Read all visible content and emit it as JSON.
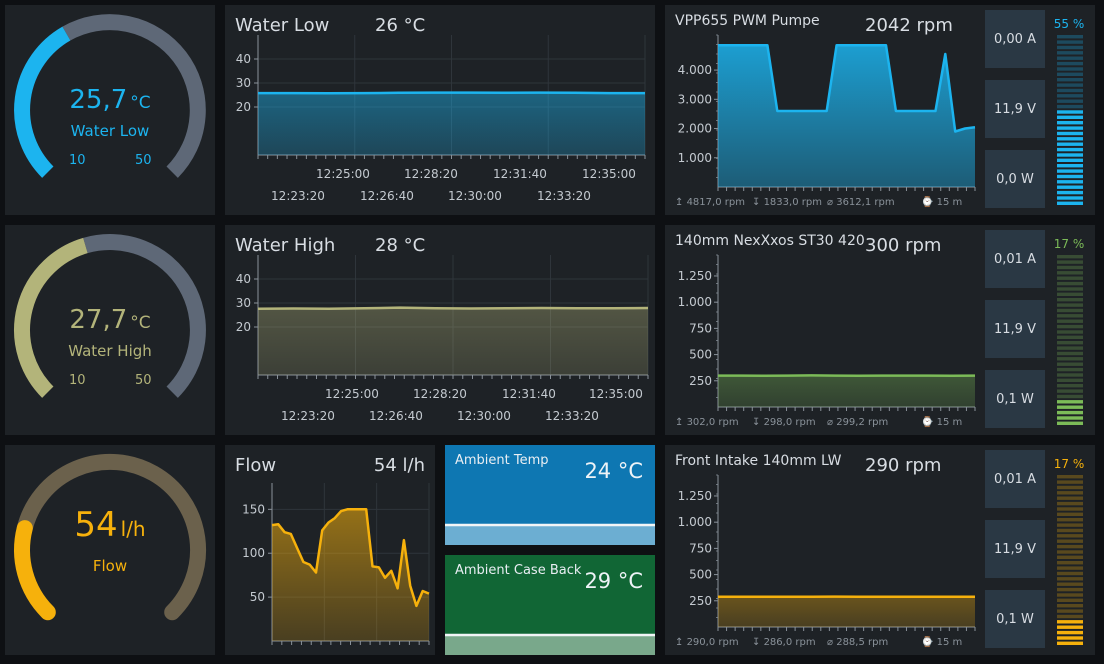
{
  "gauges": [
    {
      "value": "25,7",
      "unit": "°C",
      "label": "Water Low",
      "min": "10",
      "max": "50",
      "color": "#1cb4ef",
      "fraction": 0.39
    },
    {
      "value": "27,7",
      "unit": "°C",
      "label": "Water High",
      "min": "10",
      "max": "50",
      "color": "#b3b47a",
      "fraction": 0.44
    },
    {
      "value": "54",
      "unit": "l/h",
      "label": "Flow",
      "color": "#f6b10c",
      "fraction": 0.22
    }
  ],
  "charts": {
    "water_low": {
      "title": "Water Low",
      "value": "26 °C",
      "chart_data": {
        "type": "line",
        "ylim": [
          0,
          50
        ],
        "y_ticks": [
          "40",
          "30",
          "20"
        ],
        "x_ticks_top": [
          "12:25:00",
          "12:28:20",
          "12:31:40",
          "12:35:00"
        ],
        "x_ticks_bottom": [
          "12:23:20",
          "12:26:40",
          "12:30:00",
          "12:33:20"
        ],
        "series": [
          {
            "values": [
              25.8,
              25.8,
              25.7,
              25.8,
              25.9,
              26.0,
              26.0,
              25.9,
              26.0,
              25.9,
              25.8,
              25.8
            ]
          }
        ],
        "color": "#1cb4ef"
      }
    },
    "water_high": {
      "title": "Water High",
      "value": "28 °C",
      "chart_data": {
        "type": "line",
        "ylim": [
          0,
          50
        ],
        "y_ticks": [
          "40",
          "30",
          "20"
        ],
        "x_ticks_top": [
          "12:25:00",
          "12:28:20",
          "12:31:40",
          "12:35:00"
        ],
        "x_ticks_bottom": [
          "12:23:20",
          "12:26:40",
          "12:30:00",
          "12:33:20"
        ],
        "series": [
          {
            "values": [
              27.6,
              27.7,
              27.6,
              27.8,
              28.1,
              27.8,
              27.7,
              27.8,
              27.9,
              27.8,
              27.8,
              27.9
            ]
          }
        ],
        "color": "#b3b47a"
      }
    },
    "flow": {
      "title": "Flow",
      "value": "54 l/h",
      "chart_data": {
        "type": "line",
        "ylim": [
          0,
          180
        ],
        "y_ticks": [
          "150",
          "100",
          "50"
        ],
        "series": [
          {
            "values": [
              132,
              133,
              124,
              122,
              106,
              90,
              87,
              78,
              126,
              135,
              140,
              148,
              150,
              150,
              150,
              150,
              85,
              84,
              72,
              80,
              60,
              115,
              63,
              40,
              57,
              54
            ]
          }
        ],
        "color": "#f6b10c"
      }
    }
  },
  "fans": [
    {
      "title": "VPP655 PWM Pumpe",
      "rpm": "2042 rpm",
      "current": "0,00 A",
      "voltage": "11,9 V",
      "power": "0,0 W",
      "percent": "55 %",
      "level": 0.55,
      "color": "#1cb4ef",
      "footer": {
        "max": "4817,0 rpm",
        "min": "1833,0 rpm",
        "avg": "3612,1 rpm",
        "range": "15 m"
      },
      "chart_data": {
        "type": "area",
        "ylim": [
          0,
          5200
        ],
        "y_ticks": [
          "4.000",
          "3.000",
          "2.000",
          "1.000"
        ],
        "series": [
          {
            "values": [
              4850,
              4850,
              4850,
              4850,
              4850,
              4850,
              2600,
              2600,
              2600,
              2600,
              2600,
              2600,
              4850,
              4850,
              4850,
              4850,
              4850,
              4850,
              2600,
              2600,
              2600,
              2600,
              2600,
              4550,
              1900,
              2000,
              2042
            ]
          }
        ]
      }
    },
    {
      "title": "140mm NexXxos ST30 420",
      "rpm": "300 rpm",
      "current": "0,01 A",
      "voltage": "11,9 V",
      "power": "0,1 W",
      "percent": "17 %",
      "level": 0.17,
      "color": "#7cbb58",
      "footer": {
        "max": "302,0 rpm",
        "min": "298,0 rpm",
        "avg": "299,2 rpm",
        "range": "15 m"
      },
      "chart_data": {
        "type": "area",
        "ylim": [
          0,
          1450
        ],
        "y_ticks": [
          "1.250",
          "1.000",
          "750",
          "500",
          "250"
        ],
        "series": [
          {
            "values": [
              300,
              300,
              299,
              300,
              301,
              300,
              299,
              300,
              300,
              300,
              299,
              300
            ]
          }
        ]
      }
    },
    {
      "title": "Front Intake 140mm LW",
      "rpm": "290 rpm",
      "current": "0,01 A",
      "voltage": "11,9 V",
      "power": "0,1 W",
      "percent": "17 %",
      "level": 0.17,
      "color": "#f6b10c",
      "footer": {
        "max": "290,0 rpm",
        "min": "286,0 rpm",
        "avg": "288,5 rpm",
        "range": "15 m"
      },
      "chart_data": {
        "type": "area",
        "ylim": [
          0,
          1450
        ],
        "y_ticks": [
          "1.250",
          "1.000",
          "750",
          "500",
          "250"
        ],
        "series": [
          {
            "values": [
              289,
              288,
              289,
              288,
              289,
              290,
              289,
              288,
              289,
              289,
              288,
              289
            ]
          }
        ]
      }
    }
  ],
  "ambient": [
    {
      "title": "Ambient Temp",
      "value": "24 °C",
      "bg": "#0e77b2",
      "lower": "#6caed2"
    },
    {
      "title": "Ambient Case Back",
      "value": "29 °C",
      "bg": "#116635",
      "lower": "#79a88b"
    }
  ]
}
